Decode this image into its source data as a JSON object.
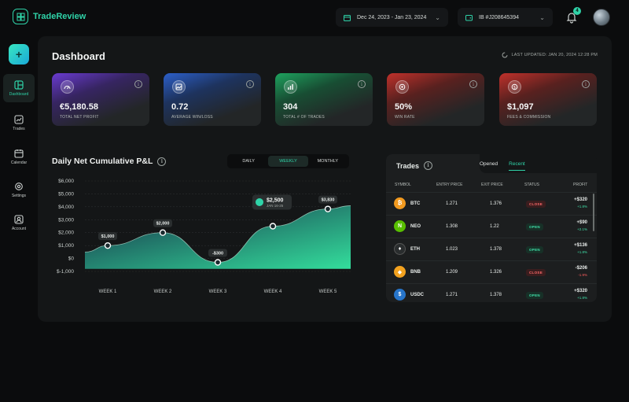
{
  "app": {
    "name": "TradeReview"
  },
  "header": {
    "date_range": "Dec 24, 2023 - Jan 23, 2024",
    "account_id": "IB #J208645394",
    "notification_count": "4"
  },
  "sidebar": {
    "items": [
      {
        "label": "Dashboard",
        "icon": "dashboard-icon",
        "active": true
      },
      {
        "label": "Trades",
        "icon": "chart-icon"
      },
      {
        "label": "Calendar",
        "icon": "calendar-icon"
      },
      {
        "label": "Settings",
        "icon": "gear-icon"
      },
      {
        "label": "Account",
        "icon": "user-icon"
      }
    ]
  },
  "main": {
    "title": "Dashboard",
    "last_updated": "LAST UPDATED: JAN 20, 2024  12:28 PM",
    "cards": [
      {
        "value": "€5,180.58",
        "label": "TOTAL NET PROFIT",
        "color": "#6a3bd1",
        "icon": "gauge-icon"
      },
      {
        "value": "0.72",
        "label": "AVERAGE WIN/LOSS",
        "color": "#2c5fc9",
        "icon": "image-icon"
      },
      {
        "value": "304",
        "label": "TOTAL # OF TRADES",
        "color": "#1ea25e",
        "icon": "bar-chart-icon"
      },
      {
        "value": "50%",
        "label": "WIN RATE",
        "color": "#c0312b",
        "icon": "target-icon"
      },
      {
        "value": "$1,097",
        "label": "FEES & COMMISSION",
        "color": "#c0312b",
        "icon": "coin-icon"
      }
    ]
  },
  "chart_section": {
    "title": "Daily Net  Cumulative P&L",
    "tabs": [
      "DAILY",
      "WEEKLY",
      "MONTHLY"
    ],
    "selected_tab": "WEEKLY"
  },
  "chart_data": {
    "type": "area",
    "categories": [
      "WEEK 1",
      "WEEK 2",
      "WEEK 3",
      "WEEK 4",
      "WEEK 5"
    ],
    "values": [
      1000,
      2000,
      -300,
      2500,
      3830
    ],
    "point_labels": [
      "$1,000",
      "$2,000",
      "-$300",
      "$2,500",
      "$3,830"
    ],
    "highlight": {
      "index": 3,
      "value": "$2,500",
      "sub": "JAN 16-25"
    },
    "y_ticks": [
      6000,
      5000,
      4000,
      3000,
      2000,
      1000,
      0,
      -1000
    ],
    "y_tick_labels": [
      "$6,000",
      "$5,000",
      "$4,000",
      "$3,000",
      "$2,000",
      "$1,000",
      "$0",
      "$-1,000"
    ],
    "ylim": [
      -1000,
      6000
    ],
    "grid": true,
    "colors": {
      "fill_top": "#35e8a3",
      "fill_bottom": "#16304a",
      "line": "#ffffff"
    }
  },
  "trades": {
    "title": "Trades",
    "tabs": [
      "Opened",
      "Recent"
    ],
    "selected_tab": "Recent",
    "columns": [
      "SYMBOL",
      "ENTRY PRICE",
      "EXIT PRICE",
      "STATUS",
      "PROFIT"
    ],
    "rows": [
      {
        "symbol": "BTC",
        "entry": "1.271",
        "exit": "1.376",
        "status": "CLOSE",
        "profit": "+$320",
        "pct": "+1.8%",
        "coin_color": "#f29a1f",
        "glyph": "₿"
      },
      {
        "symbol": "NEO",
        "entry": "1.308",
        "exit": "1.22",
        "status": "OPEN",
        "profit": "+$90",
        "pct": "+2.1%",
        "coin_color": "#58bf00",
        "glyph": "N"
      },
      {
        "symbol": "ETH",
        "entry": "1.023",
        "exit": "1.378",
        "status": "OPEN",
        "profit": "+$136",
        "pct": "+1.8%",
        "coin_color": "#2a2d2e",
        "glyph": "♦"
      },
      {
        "symbol": "BNB",
        "entry": "1.209",
        "exit": "1.326",
        "status": "CLOSE",
        "profit": "-$206",
        "pct": "-1.9%",
        "coin_color": "#f3a21f",
        "glyph": "◆"
      },
      {
        "symbol": "USDC",
        "entry": "1.271",
        "exit": "1.378",
        "status": "OPEN",
        "profit": "+$320",
        "pct": "+1.8%",
        "coin_color": "#2775ca",
        "glyph": "$"
      }
    ]
  }
}
